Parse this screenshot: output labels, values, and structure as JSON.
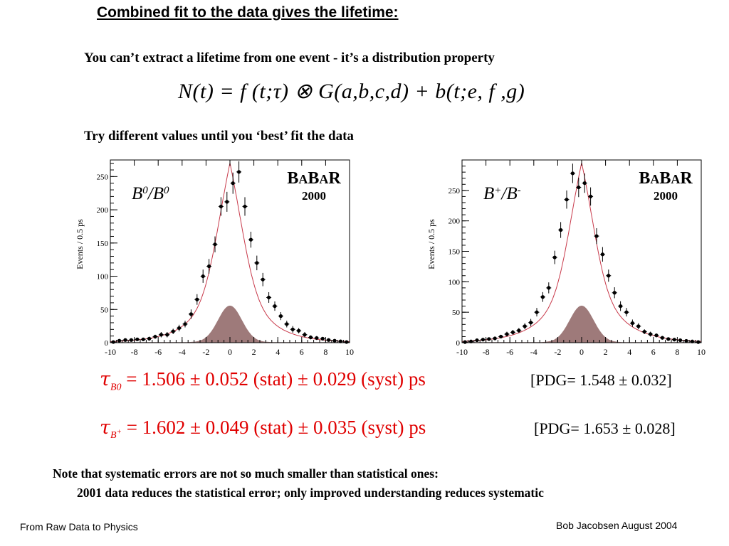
{
  "slide": {
    "title": "Combined fit to the data gives the lifetime:",
    "subtitle": "You can’t extract a lifetime from one event - it’s a distribution property",
    "formula": "N(t) = f (t;τ) ⊗ G(a,b,c,d) + b(t;e, f ,g)",
    "try_text": "Try different values until you ‘best’ fit the data",
    "results": [
      {
        "tau": "τ",
        "sub": "B0",
        "sub_sup": "",
        "text": " = 1.506 ± 0.052 (stat) ± 0.029 (syst) ps",
        "pdg": "[PDG= 1.548 ± 0.032]"
      },
      {
        "tau": "τ",
        "sub": "B",
        "sub_sup": "+",
        "text": " = 1.602 ± 0.049 (stat) ± 0.035 (syst) ps",
        "pdg": "[PDG= 1.653 ± 0.028]"
      }
    ],
    "note_line1": "Note that systematic errors are not so much smaller than statistical ones:",
    "note_line2": "2001 data reduces the statistical error; only improved understanding reduces systematic",
    "footer_left": "From Raw Data to Physics",
    "footer_right": "Bob Jacobsen August 2004"
  },
  "colors": {
    "fit_curve": "#c8394a",
    "background_fill": "#9e7a7a",
    "result_text": "#e00000"
  },
  "chart_data": [
    {
      "type": "scatter",
      "label": "B0/B0bar",
      "label_parts": {
        "main": "B",
        "sup1": "0",
        "slash": "/",
        "main2": "B",
        "sup2": "0"
      },
      "logo": "BABAR",
      "year": "2000",
      "ylabel": "Events / 0.5 ps",
      "xlim": [
        -10,
        10
      ],
      "ylim": [
        0,
        275
      ],
      "xticks": [
        -10,
        -8,
        -6,
        -4,
        -2,
        0,
        2,
        4,
        6,
        8,
        10
      ],
      "yticks": [
        0,
        50,
        100,
        150,
        200,
        250
      ],
      "points": {
        "x": [
          -9.75,
          -9.25,
          -8.75,
          -8.25,
          -7.75,
          -7.25,
          -6.75,
          -6.25,
          -5.75,
          -5.25,
          -4.75,
          -4.25,
          -3.75,
          -3.25,
          -2.75,
          -2.25,
          -1.75,
          -1.25,
          -0.75,
          -0.25,
          0.25,
          0.75,
          1.25,
          1.75,
          2.25,
          2.75,
          3.25,
          3.75,
          4.25,
          4.75,
          5.25,
          5.75,
          6.25,
          6.75,
          7.25,
          7.75,
          8.25,
          8.75,
          9.25,
          9.75
        ],
        "y": [
          1,
          3,
          4,
          4,
          5,
          5,
          6,
          9,
          12,
          12,
          17,
          22,
          28,
          43,
          65,
          100,
          115,
          148,
          205,
          212,
          240,
          257,
          205,
          155,
          120,
          95,
          68,
          55,
          40,
          28,
          20,
          18,
          12,
          8,
          7,
          6,
          4,
          3,
          2,
          1
        ],
        "err": [
          1,
          2,
          2,
          2,
          2,
          2,
          3,
          3,
          4,
          4,
          4,
          5,
          5,
          7,
          8,
          10,
          11,
          12,
          14,
          15,
          16,
          16,
          14,
          12,
          11,
          10,
          8,
          7,
          6,
          5,
          5,
          4,
          4,
          3,
          3,
          2,
          2,
          2,
          1,
          1
        ]
      },
      "fit": {
        "peak": 270,
        "sigma_core": 1.2,
        "tau": 2.0
      },
      "background": {
        "peak": 55,
        "sigma": 1.0
      }
    },
    {
      "type": "scatter",
      "label": "B+/B-",
      "label_parts": {
        "main": "B",
        "sup1": "+",
        "slash": "/",
        "main2": "B",
        "sup2": "-"
      },
      "logo": "BABAR",
      "year": "2000",
      "ylabel": "Events / 0.5 ps",
      "xlim": [
        -10,
        10
      ],
      "ylim": [
        0,
        300
      ],
      "xticks": [
        -10,
        -8,
        -6,
        -4,
        -2,
        0,
        2,
        4,
        6,
        8,
        10
      ],
      "yticks": [
        0,
        50,
        100,
        150,
        200,
        250
      ],
      "points": {
        "x": [
          -9.75,
          -9.25,
          -8.75,
          -8.25,
          -7.75,
          -7.25,
          -6.75,
          -6.25,
          -5.75,
          -5.25,
          -4.75,
          -4.25,
          -3.75,
          -3.25,
          -2.75,
          -2.25,
          -1.75,
          -1.25,
          -0.75,
          -0.25,
          0.25,
          0.75,
          1.25,
          1.75,
          2.25,
          2.75,
          3.25,
          3.75,
          4.25,
          4.75,
          5.25,
          5.75,
          6.25,
          6.75,
          7.25,
          7.75,
          8.25,
          8.75,
          9.25,
          9.75
        ],
        "y": [
          1,
          2,
          4,
          5,
          6,
          7,
          10,
          14,
          17,
          20,
          27,
          33,
          50,
          75,
          90,
          140,
          185,
          235,
          278,
          255,
          262,
          240,
          175,
          145,
          110,
          82,
          60,
          50,
          32,
          27,
          18,
          14,
          12,
          8,
          6,
          5,
          4,
          3,
          2,
          1
        ],
        "err": [
          1,
          2,
          2,
          2,
          2,
          3,
          3,
          4,
          4,
          4,
          5,
          6,
          7,
          8,
          9,
          11,
          13,
          15,
          16,
          16,
          16,
          15,
          13,
          12,
          10,
          9,
          8,
          7,
          6,
          5,
          4,
          4,
          3,
          3,
          2,
          2,
          2,
          2,
          1,
          1
        ]
      },
      "fit": {
        "peak": 295,
        "sigma_core": 1.15,
        "tau": 2.1
      },
      "background": {
        "peak": 60,
        "sigma": 1.0
      }
    }
  ]
}
